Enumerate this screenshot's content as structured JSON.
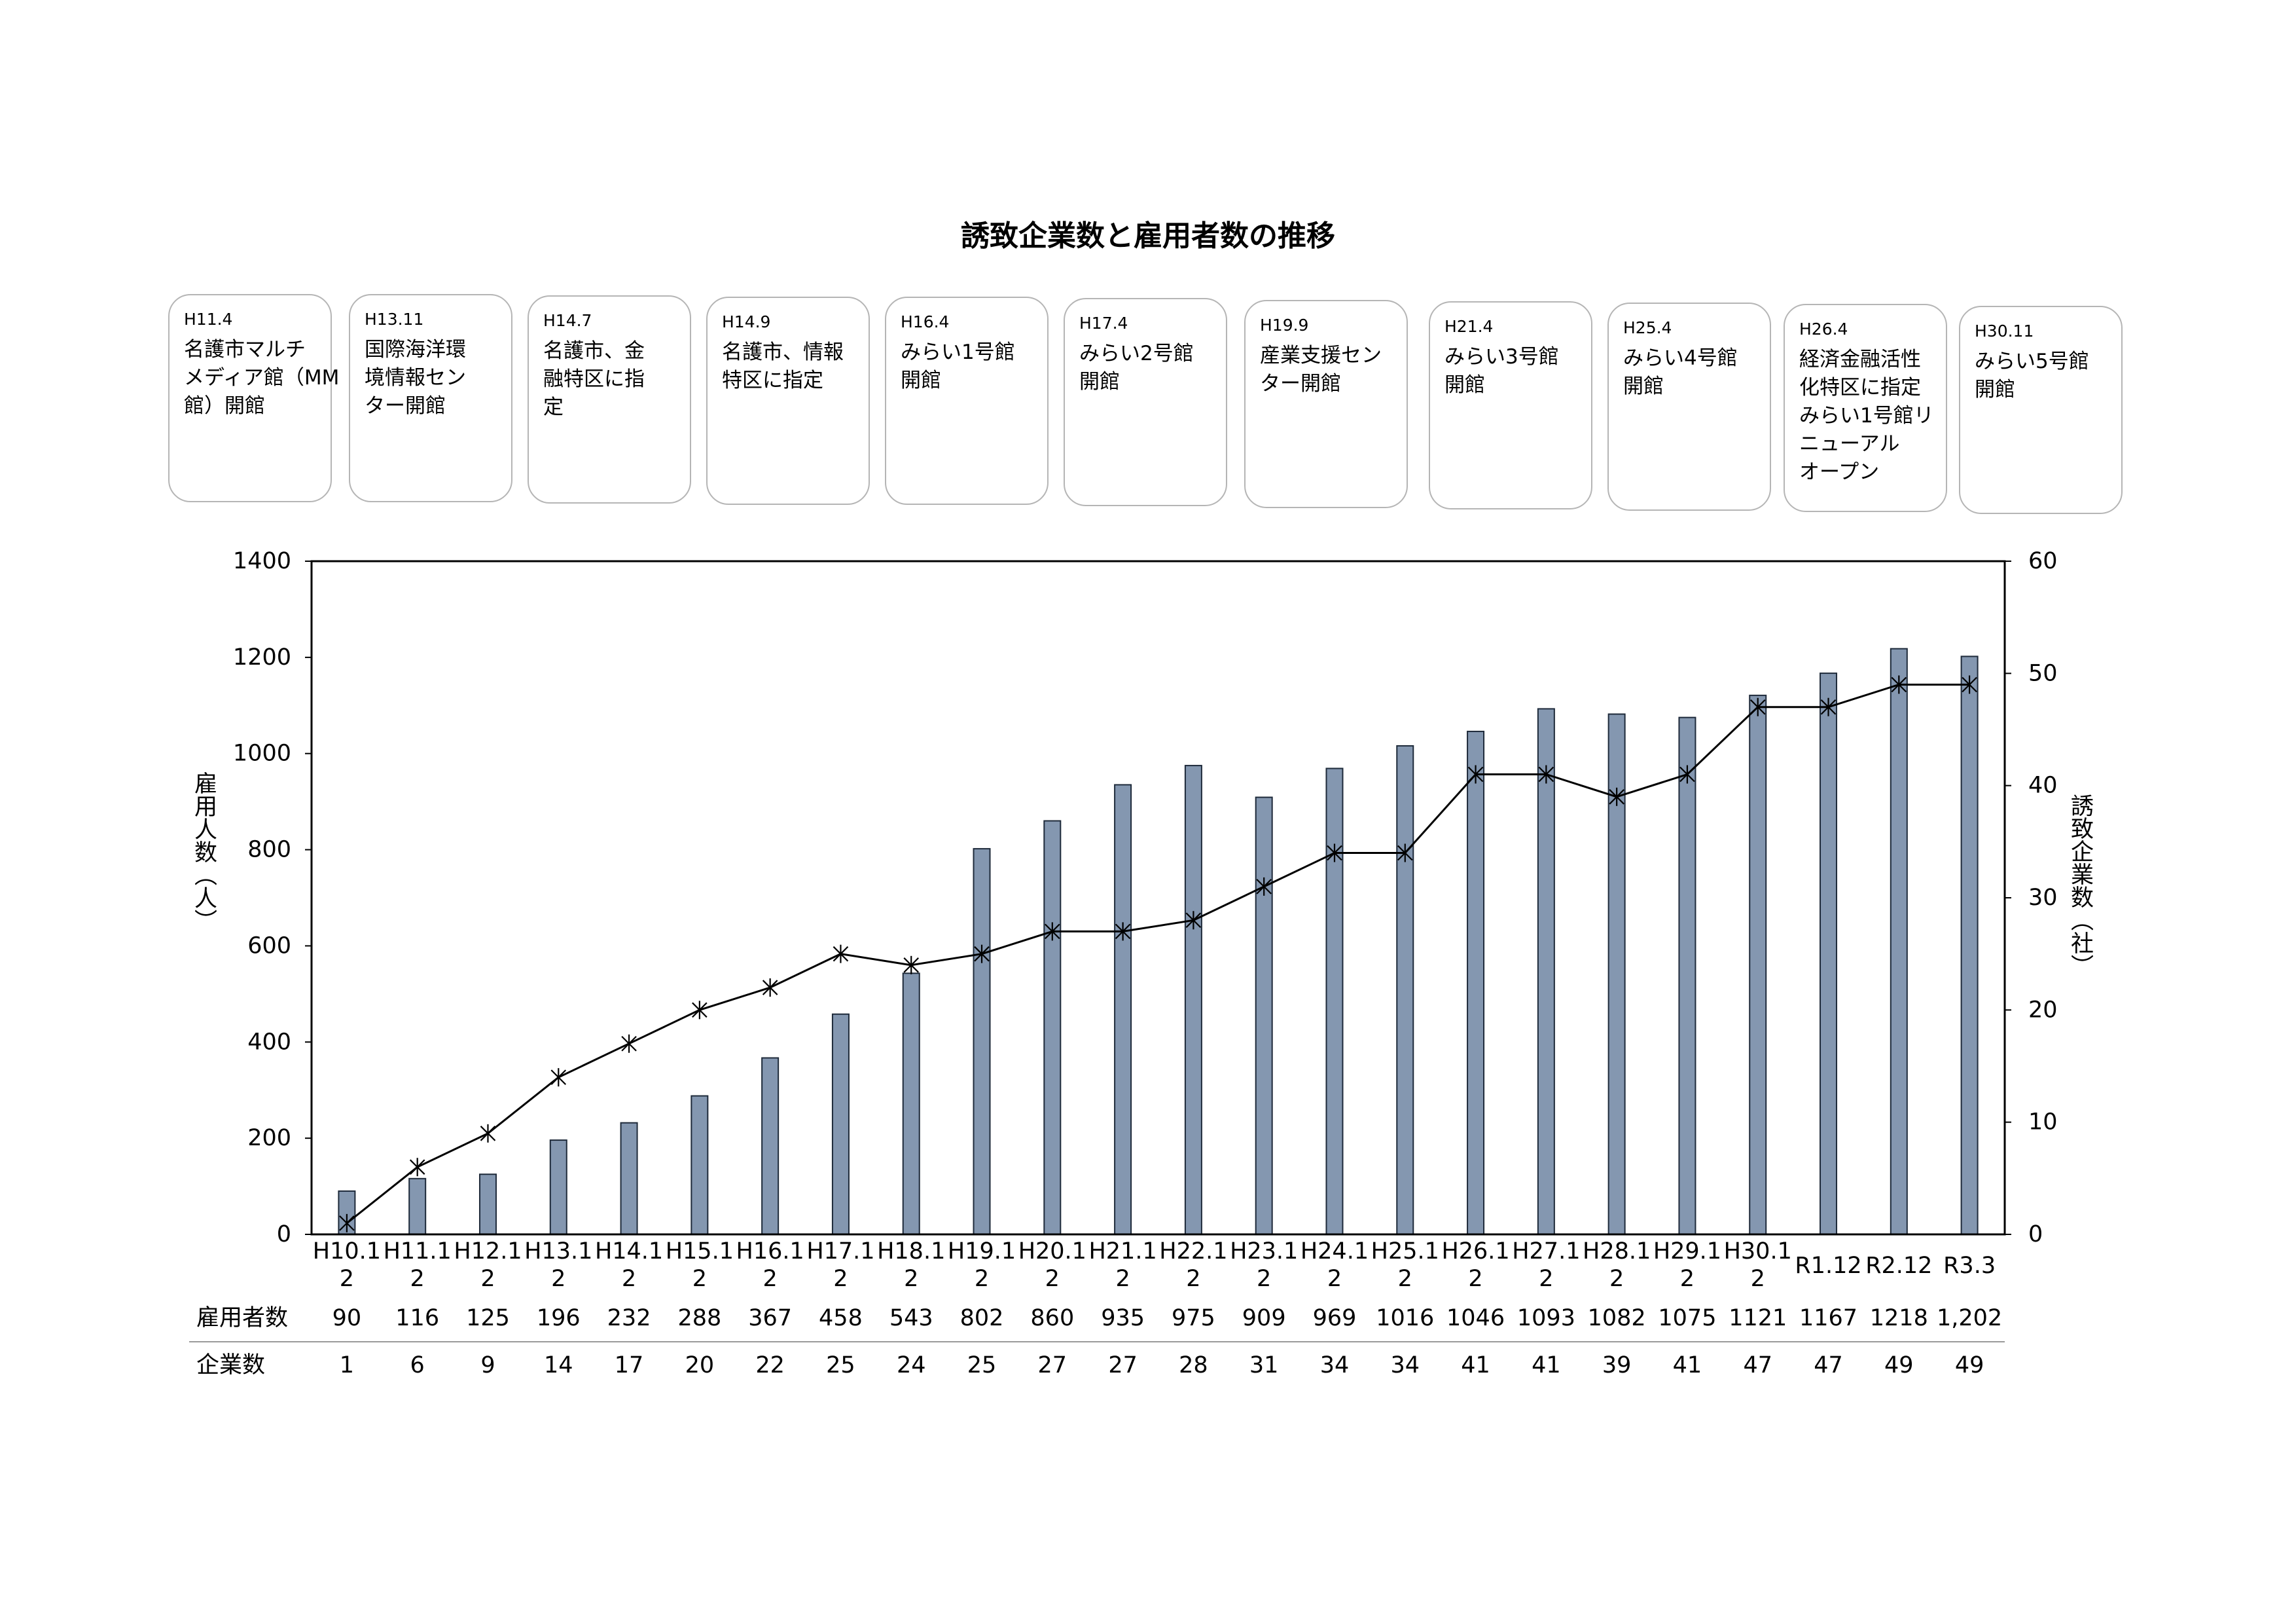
{
  "timeline": [
    {
      "date": "H11.4",
      "lines": [
        "名護市マルチ",
        "メディア館（MM",
        "館）開館"
      ]
    },
    {
      "date": "H13.11",
      "lines": [
        "国際海洋環",
        "境情報セン",
        "ター開館"
      ]
    },
    {
      "date": "H14.7",
      "lines": [
        "名護市、金",
        "融特区に指",
        "定"
      ]
    },
    {
      "date": "H14.9",
      "lines": [
        "名護市、情報",
        "特区に指定"
      ]
    },
    {
      "date": "H16.4",
      "lines": [
        "みらい1号館",
        "開館"
      ]
    },
    {
      "date": "H17.4",
      "lines": [
        "みらい2号館",
        "開館"
      ]
    },
    {
      "date": "H19.9",
      "lines": [
        "産業支援セン",
        "ター開館"
      ]
    },
    {
      "date": "H21.4",
      "lines": [
        "みらい3号館",
        "開館"
      ]
    },
    {
      "date": "H25.4",
      "lines": [
        "みらい4号館",
        "開館"
      ]
    },
    {
      "date": "H26.4",
      "lines": [
        "経済金融活性",
        "化特区に指定",
        "みらい1号館リ",
        "ニューアル",
        "オープン"
      ]
    },
    {
      "date": "H30.11",
      "lines": [
        "みらい5号館",
        "開館"
      ]
    }
  ],
  "chart_data": {
    "type": "bar",
    "title": "誘致企業数と雇用者数の推移",
    "categories": [
      "H10.12",
      "H11.12",
      "H12.12",
      "H13.12",
      "H14.12",
      "H15.12",
      "H16.12",
      "H17.12",
      "H18.12",
      "H19.12",
      "H20.12",
      "H21.12",
      "H22.12",
      "H23.12",
      "H24.12",
      "H25.12",
      "H26.12",
      "H27.12",
      "H28.12",
      "H29.12",
      "H30.12",
      "R1.12",
      "R2.12",
      "R3.3"
    ],
    "series": [
      {
        "name": "雇用者数",
        "type": "bar",
        "axis": "left",
        "color": "#8497b0",
        "values": [
          90,
          116,
          125,
          196,
          232,
          288,
          367,
          458,
          543,
          802,
          860,
          935,
          975,
          909,
          969,
          1016,
          1046,
          1093,
          1082,
          1075,
          1121,
          1167,
          1218,
          1202
        ]
      },
      {
        "name": "企業数",
        "type": "line",
        "axis": "right",
        "color": "#000000",
        "marker": "star",
        "values": [
          1,
          6,
          9,
          14,
          17,
          20,
          22,
          25,
          24,
          25,
          27,
          27,
          28,
          31,
          34,
          34,
          41,
          41,
          39,
          41,
          47,
          47,
          49,
          49
        ]
      }
    ],
    "ylabel": "雇用人数（人）",
    "y2label": "誘致企業数（社）",
    "ylim": [
      0,
      1400
    ],
    "y2lim": [
      0,
      60
    ],
    "yticks": [
      0,
      200,
      400,
      600,
      800,
      1000,
      1200,
      1400
    ],
    "y2ticks": [
      0,
      10,
      20,
      30,
      40,
      50,
      60
    ],
    "grid": false,
    "legend": "none",
    "data_table": {
      "rows": [
        {
          "label": "雇用者数",
          "values": [
            "90",
            "116",
            "125",
            "196",
            "232",
            "288",
            "367",
            "458",
            "543",
            "802",
            "860",
            "935",
            "975",
            "909",
            "969",
            "1016",
            "1046",
            "1093",
            "1082",
            "1075",
            "1121",
            "1167",
            "1218",
            "1,202"
          ]
        },
        {
          "label": "企業数",
          "values": [
            "1",
            "6",
            "9",
            "14",
            "17",
            "20",
            "22",
            "25",
            "24",
            "25",
            "27",
            "27",
            "28",
            "31",
            "34",
            "34",
            "41",
            "41",
            "39",
            "41",
            "47",
            "47",
            "49",
            "49"
          ]
        }
      ]
    }
  }
}
